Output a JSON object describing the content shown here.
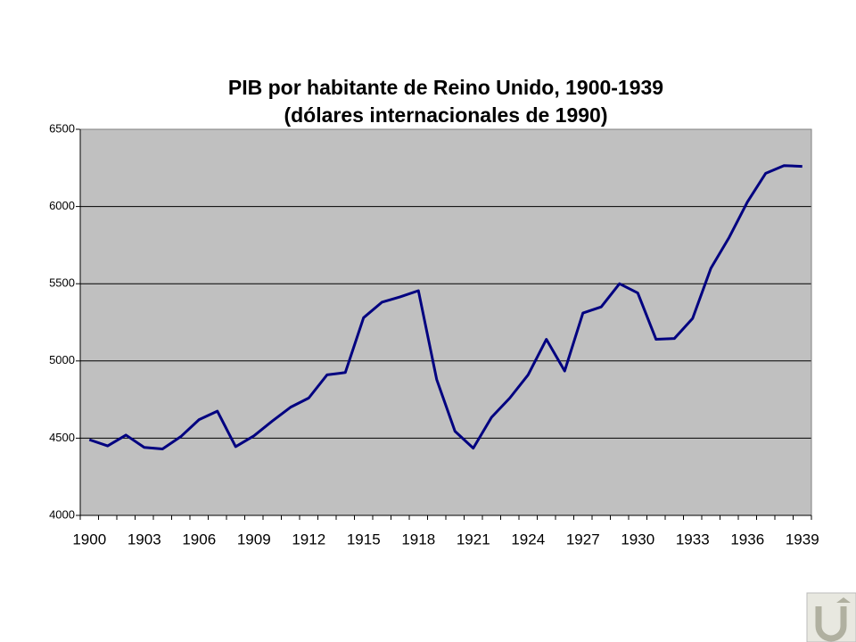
{
  "chart_data": {
    "type": "line",
    "title": "PIB por habitante de Reino Unido, 1900-1939",
    "subtitle": "(dólares internacionales de 1990)",
    "categories": [
      "1900",
      null,
      null,
      "1903",
      null,
      null,
      "1906",
      null,
      null,
      "1909",
      null,
      null,
      "1912",
      null,
      null,
      "1915",
      null,
      null,
      "1918",
      null,
      null,
      "1921",
      null,
      null,
      "1924",
      null,
      null,
      "1927",
      null,
      null,
      "1930",
      null,
      null,
      "1933",
      null,
      null,
      "1936",
      null,
      null,
      "1939"
    ],
    "values": [
      4490,
      4450,
      4520,
      4440,
      4430,
      4510,
      4620,
      4675,
      4445,
      4515,
      4610,
      4700,
      4760,
      4910,
      4925,
      5280,
      5380,
      5415,
      5455,
      4880,
      4545,
      4435,
      4635,
      4760,
      4910,
      5140,
      4935,
      5310,
      5350,
      5500,
      5440,
      5140,
      5145,
      5275,
      5600,
      5800,
      6030,
      6215,
      6265,
      6260
    ],
    "color": "#000080",
    "ylim": [
      4000,
      6500
    ],
    "yticks": [
      4000,
      4500,
      5000,
      5500,
      6000,
      6500
    ],
    "grid": true
  }
}
